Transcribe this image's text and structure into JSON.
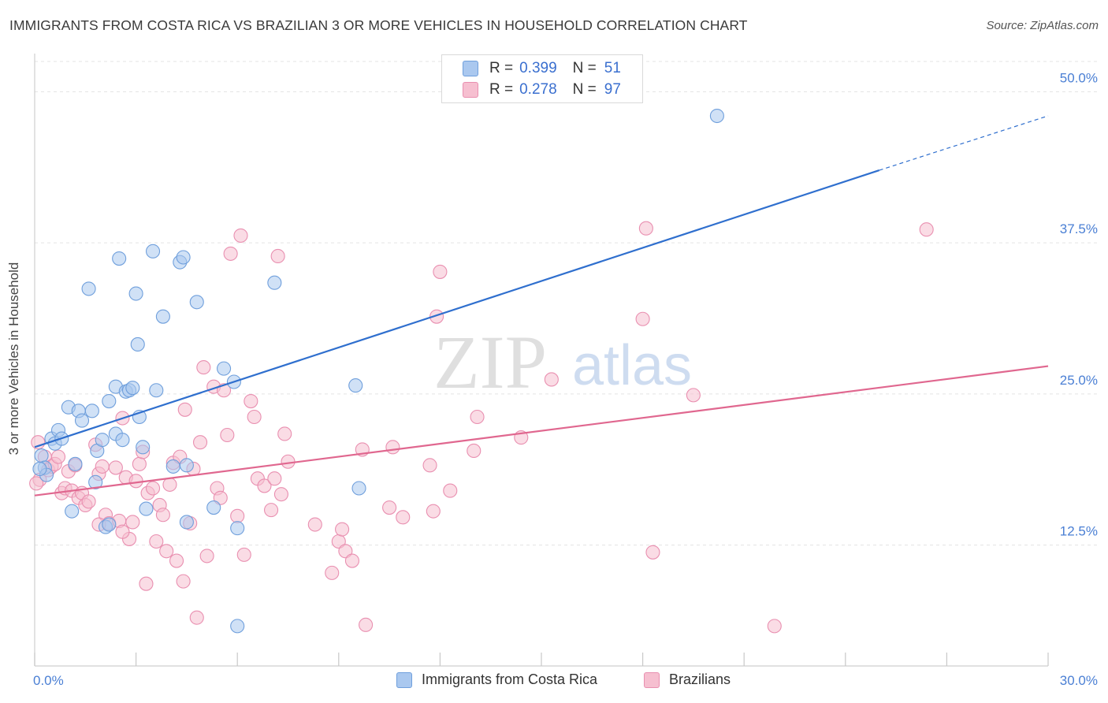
{
  "title": "IMMIGRANTS FROM COSTA RICA VS BRAZILIAN 3 OR MORE VEHICLES IN HOUSEHOLD CORRELATION CHART",
  "source": "Source: ZipAtlas.com",
  "watermark": {
    "zip": "ZIP",
    "atlas": "atlas"
  },
  "legend_top": [
    {
      "r_label": "R =",
      "r_value": "0.399",
      "n_label": "N =",
      "n_value": "51"
    },
    {
      "r_label": "R =",
      "r_value": "0.278",
      "n_label": "N =",
      "n_value": "97"
    }
  ],
  "legend_bottom": [
    {
      "label": "Immigrants from Costa Rica"
    },
    {
      "label": "Brazilians"
    }
  ],
  "colors": {
    "blue_fill": "#aac8ef",
    "blue_stroke": "#6f9fdc",
    "blue_line": "#2f6fce",
    "pink_fill": "#f6bfd0",
    "pink_stroke": "#e98fb0",
    "pink_line": "#e0678f",
    "tick_label": "#4a7fd4",
    "grid": "#e3e3e3"
  },
  "chart_data": {
    "type": "scatter",
    "title": "IMMIGRANTS FROM COSTA RICA VS BRAZILIAN 3 OR MORE VEHICLES IN HOUSEHOLD CORRELATION CHART",
    "xlabel": "",
    "ylabel": "3 or more Vehicles in Household",
    "xlim": [
      0,
      30
    ],
    "ylim": [
      2.5,
      52.5
    ],
    "x_tick_labels": [
      {
        "value": 0,
        "label": "0.0%"
      },
      {
        "value": 30,
        "label": "30.0%"
      }
    ],
    "x_minor_ticks": [
      0,
      3,
      6,
      9,
      12,
      15,
      18,
      21,
      24,
      27,
      30
    ],
    "y_ticks": [
      {
        "value": 12.5,
        "label": "12.5%"
      },
      {
        "value": 25.0,
        "label": "25.0%"
      },
      {
        "value": 37.5,
        "label": "37.5%"
      },
      {
        "value": 50.0,
        "label": "50.0%"
      }
    ],
    "series": [
      {
        "name": "Immigrants from Costa Rica",
        "color": "blue",
        "R": 0.399,
        "N": 51,
        "trend": {
          "x0": 0,
          "y0": 20.6,
          "x1": 25.0,
          "y1": 43.5,
          "x_ext_end": 30,
          "y_ext_end": 48.0
        },
        "points": [
          [
            0.2,
            19.9
          ],
          [
            0.3,
            18.9
          ],
          [
            0.35,
            18.3
          ],
          [
            0.5,
            21.3
          ],
          [
            0.6,
            20.9
          ],
          [
            0.7,
            22.0
          ],
          [
            0.8,
            21.3
          ],
          [
            1.0,
            23.9
          ],
          [
            1.1,
            15.3
          ],
          [
            1.2,
            19.2
          ],
          [
            1.3,
            23.6
          ],
          [
            1.4,
            22.8
          ],
          [
            1.6,
            33.7
          ],
          [
            1.7,
            23.6
          ],
          [
            1.8,
            17.7
          ],
          [
            1.85,
            20.3
          ],
          [
            2.0,
            21.2
          ],
          [
            2.1,
            14.0
          ],
          [
            2.2,
            24.4
          ],
          [
            2.4,
            21.7
          ],
          [
            2.4,
            25.6
          ],
          [
            2.5,
            36.2
          ],
          [
            2.6,
            21.2
          ],
          [
            2.7,
            25.2
          ],
          [
            2.8,
            25.3
          ],
          [
            2.9,
            25.5
          ],
          [
            3.0,
            33.3
          ],
          [
            3.05,
            29.1
          ],
          [
            3.1,
            23.1
          ],
          [
            3.2,
            20.6
          ],
          [
            3.3,
            15.5
          ],
          [
            3.5,
            36.8
          ],
          [
            3.6,
            25.3
          ],
          [
            3.8,
            31.4
          ],
          [
            4.1,
            19.0
          ],
          [
            4.3,
            35.9
          ],
          [
            4.4,
            36.3
          ],
          [
            4.5,
            14.4
          ],
          [
            4.8,
            32.6
          ],
          [
            5.3,
            15.6
          ],
          [
            5.6,
            27.1
          ],
          [
            5.9,
            26.0
          ],
          [
            6.0,
            13.9
          ],
          [
            6.0,
            5.8
          ],
          [
            7.1,
            34.2
          ],
          [
            9.5,
            25.7
          ],
          [
            9.6,
            17.2
          ],
          [
            20.2,
            48.0
          ],
          [
            0.15,
            18.8
          ],
          [
            2.2,
            14.2
          ],
          [
            4.5,
            19.1
          ]
        ]
      },
      {
        "name": "Brazilians",
        "color": "pink",
        "R": 0.278,
        "N": 97,
        "trend": {
          "x0": 0,
          "y0": 16.6,
          "x1": 30,
          "y1": 27.3
        },
        "points": [
          [
            0.1,
            21.0
          ],
          [
            0.15,
            17.9
          ],
          [
            0.3,
            19.8
          ],
          [
            0.4,
            18.7
          ],
          [
            0.5,
            19.0
          ],
          [
            0.6,
            19.2
          ],
          [
            0.7,
            19.8
          ],
          [
            0.8,
            16.8
          ],
          [
            0.9,
            17.2
          ],
          [
            1.0,
            18.6
          ],
          [
            1.1,
            17.0
          ],
          [
            1.2,
            19.1
          ],
          [
            1.3,
            16.4
          ],
          [
            1.4,
            16.8
          ],
          [
            1.5,
            15.8
          ],
          [
            1.6,
            16.1
          ],
          [
            1.8,
            20.8
          ],
          [
            1.9,
            18.4
          ],
          [
            2.0,
            19.0
          ],
          [
            2.1,
            15.0
          ],
          [
            2.2,
            14.3
          ],
          [
            2.4,
            18.9
          ],
          [
            2.5,
            14.5
          ],
          [
            2.6,
            23.0
          ],
          [
            2.7,
            18.1
          ],
          [
            2.8,
            13.0
          ],
          [
            2.9,
            14.4
          ],
          [
            3.0,
            17.8
          ],
          [
            3.1,
            19.2
          ],
          [
            3.2,
            20.2
          ],
          [
            3.3,
            9.3
          ],
          [
            3.35,
            16.8
          ],
          [
            3.5,
            17.2
          ],
          [
            3.6,
            12.8
          ],
          [
            3.7,
            15.8
          ],
          [
            3.8,
            15.0
          ],
          [
            3.9,
            12.0
          ],
          [
            4.0,
            17.5
          ],
          [
            4.1,
            19.3
          ],
          [
            4.2,
            11.2
          ],
          [
            4.3,
            19.8
          ],
          [
            4.4,
            9.5
          ],
          [
            4.45,
            23.7
          ],
          [
            4.6,
            14.3
          ],
          [
            4.7,
            18.8
          ],
          [
            4.8,
            6.5
          ],
          [
            4.9,
            21.0
          ],
          [
            5.0,
            27.2
          ],
          [
            5.1,
            11.6
          ],
          [
            5.3,
            25.6
          ],
          [
            5.4,
            17.2
          ],
          [
            5.5,
            16.4
          ],
          [
            5.6,
            25.3
          ],
          [
            5.7,
            21.6
          ],
          [
            5.8,
            36.6
          ],
          [
            6.0,
            14.9
          ],
          [
            6.1,
            38.1
          ],
          [
            6.2,
            11.7
          ],
          [
            6.4,
            24.4
          ],
          [
            6.5,
            23.1
          ],
          [
            6.6,
            18.0
          ],
          [
            6.8,
            17.4
          ],
          [
            7.0,
            15.4
          ],
          [
            7.1,
            18.0
          ],
          [
            7.2,
            36.4
          ],
          [
            7.3,
            16.7
          ],
          [
            7.4,
            21.7
          ],
          [
            7.5,
            19.4
          ],
          [
            8.3,
            14.2
          ],
          [
            8.8,
            10.2
          ],
          [
            9.0,
            12.8
          ],
          [
            9.1,
            13.8
          ],
          [
            9.2,
            12.0
          ],
          [
            9.4,
            11.2
          ],
          [
            9.7,
            20.4
          ],
          [
            9.8,
            5.9
          ],
          [
            10.5,
            15.6
          ],
          [
            10.6,
            20.6
          ],
          [
            10.9,
            14.8
          ],
          [
            11.7,
            19.1
          ],
          [
            11.8,
            15.3
          ],
          [
            11.9,
            31.4
          ],
          [
            12.0,
            35.1
          ],
          [
            12.3,
            17.0
          ],
          [
            13.0,
            20.3
          ],
          [
            13.1,
            23.1
          ],
          [
            14.4,
            21.4
          ],
          [
            15.3,
            26.2
          ],
          [
            18.0,
            31.2
          ],
          [
            18.1,
            38.7
          ],
          [
            18.3,
            11.9
          ],
          [
            19.5,
            24.9
          ],
          [
            21.9,
            5.8
          ],
          [
            26.4,
            38.6
          ],
          [
            0.05,
            17.6
          ],
          [
            1.9,
            14.2
          ],
          [
            2.6,
            13.6
          ]
        ]
      }
    ]
  }
}
